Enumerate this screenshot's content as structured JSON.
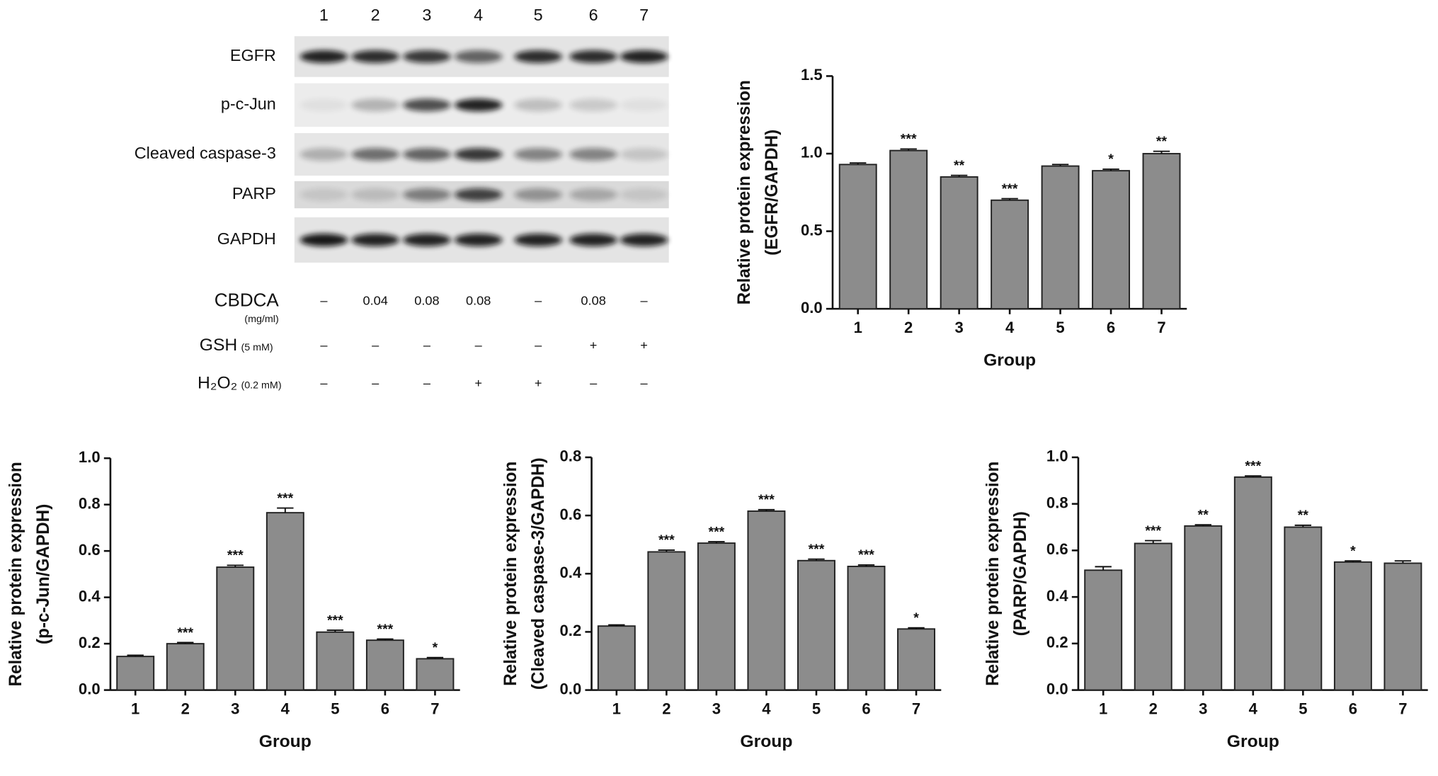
{
  "blot": {
    "lanes": [
      "1",
      "2",
      "3",
      "4",
      "5",
      "6",
      "7"
    ],
    "proteins": [
      "EGFR",
      "p-c-Jun",
      "Cleaved caspase-3",
      "PARP",
      "GAPDH"
    ],
    "treatments": [
      {
        "label": "CBDCA",
        "unit": "(mg/ml)",
        "values": [
          "–",
          "0.04",
          "0.08",
          "0.08",
          "–",
          "0.08",
          "–"
        ]
      },
      {
        "label": "GSH",
        "unit": "(5 mM)",
        "values": [
          "–",
          "–",
          "–",
          "–",
          "–",
          "+",
          "+"
        ]
      },
      {
        "label": "H₂O₂",
        "unit": "(0.2 mM)",
        "values": [
          "–",
          "–",
          "–",
          "+",
          "+",
          "–",
          "–"
        ]
      }
    ]
  },
  "chart_data": [
    {
      "type": "bar",
      "y_label": [
        "Relative protein expression",
        "(EGFR/GAPDH)"
      ],
      "x_label": "Group",
      "categories": [
        "1",
        "2",
        "3",
        "4",
        "5",
        "6",
        "7"
      ],
      "values": [
        0.93,
        1.02,
        0.85,
        0.7,
        0.92,
        0.89,
        1.0
      ],
      "errors": [
        0.01,
        0.01,
        0.01,
        0.01,
        0.01,
        0.01,
        0.015
      ],
      "annotations": [
        null,
        "***",
        "**",
        "***",
        null,
        "*",
        "**"
      ],
      "color": "#8c8c8c",
      "ylim": [
        0,
        1.5
      ],
      "yticks": [
        {
          "value": 0,
          "label": "0.0"
        },
        {
          "value": 0.5,
          "label": "0.5"
        },
        {
          "value": 1,
          "label": "1.0"
        },
        {
          "value": 1.5,
          "label": "1.5"
        }
      ],
      "grid": false
    },
    {
      "type": "bar",
      "y_label": [
        "Relative protein expression",
        "(p-c-Jun/GAPDH)"
      ],
      "x_label": "Group",
      "categories": [
        "1",
        "2",
        "3",
        "4",
        "5",
        "6",
        "7"
      ],
      "values": [
        0.145,
        0.2,
        0.53,
        0.765,
        0.25,
        0.215,
        0.135
      ],
      "errors": [
        0.005,
        0.005,
        0.008,
        0.02,
        0.008,
        0.005,
        0.005
      ],
      "annotations": [
        null,
        "***",
        "***",
        "***",
        "***",
        "***",
        "*"
      ],
      "color": "#8c8c8c",
      "ylim": [
        0,
        1.0
      ],
      "yticks": [
        {
          "value": 0,
          "label": "0.0"
        },
        {
          "value": 0.2,
          "label": "0.2"
        },
        {
          "value": 0.4,
          "label": "0.4"
        },
        {
          "value": 0.6,
          "label": "0.6"
        },
        {
          "value": 0.8,
          "label": "0.8"
        },
        {
          "value": 1,
          "label": "1.0"
        }
      ],
      "grid": false
    },
    {
      "type": "bar",
      "y_label": [
        "Relative protein expression",
        "(Cleaved caspase-3/GAPDH)"
      ],
      "x_label": "Group",
      "categories": [
        "1",
        "2",
        "3",
        "4",
        "5",
        "6",
        "7"
      ],
      "values": [
        0.22,
        0.475,
        0.505,
        0.615,
        0.445,
        0.425,
        0.21
      ],
      "errors": [
        0.004,
        0.006,
        0.005,
        0.005,
        0.005,
        0.005,
        0.004
      ],
      "annotations": [
        null,
        "***",
        "***",
        "***",
        "***",
        "***",
        "*"
      ],
      "color": "#8c8c8c",
      "ylim": [
        0,
        0.8
      ],
      "yticks": [
        {
          "value": 0,
          "label": "0.0"
        },
        {
          "value": 0.2,
          "label": "0.2"
        },
        {
          "value": 0.4,
          "label": "0.4"
        },
        {
          "value": 0.6,
          "label": "0.6"
        },
        {
          "value": 0.8,
          "label": "0.8"
        }
      ],
      "grid": false
    },
    {
      "type": "bar",
      "y_label": [
        "Relative protein expression",
        "(PARP/GAPDH)"
      ],
      "x_label": "Group",
      "categories": [
        "1",
        "2",
        "3",
        "4",
        "5",
        "6",
        "7"
      ],
      "values": [
        0.515,
        0.63,
        0.705,
        0.915,
        0.7,
        0.55,
        0.545
      ],
      "errors": [
        0.015,
        0.012,
        0.005,
        0.005,
        0.008,
        0.005,
        0.01
      ],
      "annotations": [
        null,
        "***",
        "**",
        "***",
        "**",
        "*",
        null
      ],
      "color": "#8c8c8c",
      "ylim": [
        0,
        1.0
      ],
      "yticks": [
        {
          "value": 0,
          "label": "0.0"
        },
        {
          "value": 0.2,
          "label": "0.2"
        },
        {
          "value": 0.4,
          "label": "0.4"
        },
        {
          "value": 0.6,
          "label": "0.6"
        },
        {
          "value": 0.8,
          "label": "0.8"
        },
        {
          "value": 1,
          "label": "1.0"
        }
      ],
      "grid": false
    }
  ]
}
